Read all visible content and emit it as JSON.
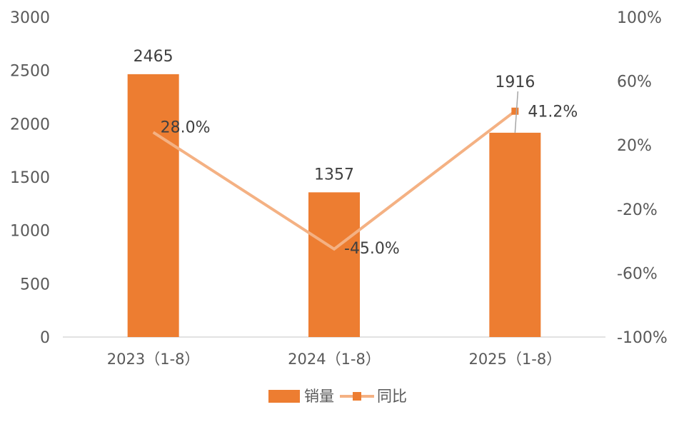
{
  "chart_data": {
    "type": "bar",
    "title": "",
    "categories": [
      "2023（1-8）",
      "2024（1-8）",
      "2025（1-8）"
    ],
    "series": [
      {
        "name": "销量",
        "type": "bar",
        "axis": "left",
        "values": [
          2465,
          1357,
          1916
        ],
        "labels": [
          "2465",
          "1357",
          "1916"
        ],
        "color": "#ED7D31"
      },
      {
        "name": "同比",
        "type": "line",
        "axis": "right",
        "values": [
          28.0,
          -45.0,
          41.2
        ],
        "labels": [
          "28.0%",
          "-45.0%",
          "41.2%"
        ],
        "color": "#F4B183",
        "marker_color": "#ED7D31"
      }
    ],
    "y_left": {
      "min": 0,
      "max": 3000,
      "ticks": [
        0,
        500,
        1000,
        1500,
        2000,
        2500,
        3000
      ],
      "tick_labels": [
        "0",
        "500",
        "1000",
        "1500",
        "2000",
        "2500",
        "3000"
      ]
    },
    "y_right": {
      "min": -100,
      "max": 100,
      "ticks": [
        -100,
        -60,
        -20,
        20,
        60,
        100
      ],
      "tick_labels": [
        "-100%",
        "-60%",
        "-20%",
        "20%",
        "60%",
        "100%"
      ]
    },
    "grid": false,
    "legend": "bottom-center"
  }
}
